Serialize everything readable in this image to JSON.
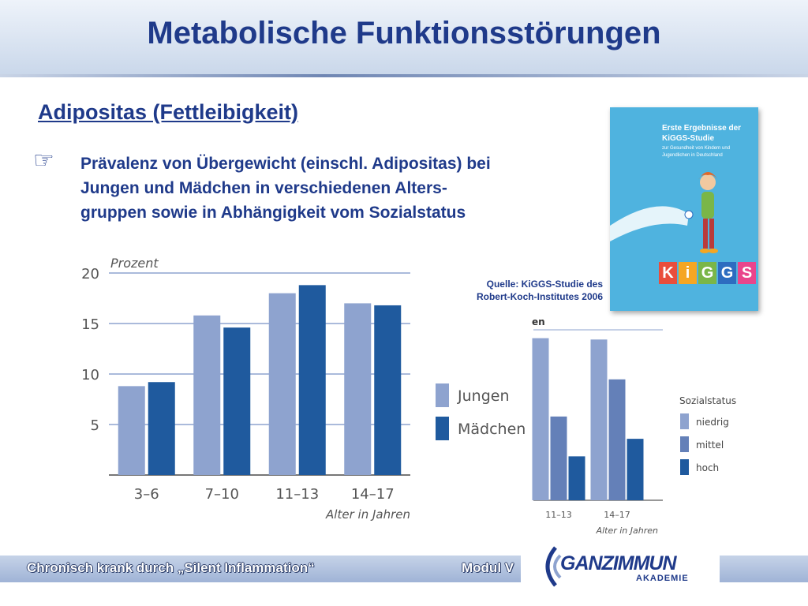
{
  "slide": {
    "title": "Metabolische Funktionsstörungen",
    "subtitle": "Adipositas (Fettleibigkeit)",
    "bullet_icon": "pointing-hand-icon",
    "bullet_lines": [
      "Prävalenz von Übergewicht (einschl. Adipositas) bei",
      "Jungen und Mädchen in verschiedenen Alters-",
      "gruppen sowie in Abhängigkeit vom Sozialstatus"
    ],
    "source_lines": [
      "Quelle: KiGGS-Studie des",
      "Robert-Koch-Institutes 2006"
    ]
  },
  "cover": {
    "title": "Erste Ergebnisse der KiGGS-Studie",
    "subtitle": "zur Gesundheit von Kindern und Jugendlichen in Deutschland",
    "logo_letters": [
      "K",
      "i",
      "G",
      "G",
      "S"
    ],
    "logo_colors": [
      "#e94e3c",
      "#f5a623",
      "#7ab648",
      "#2d6cc0",
      "#e9458c"
    ],
    "background": "#4fb3df"
  },
  "footer": {
    "left_text": "Chronisch krank durch „Silent Inflammation“",
    "modul": "Modul V",
    "logo_main": "GANZIMMUN",
    "logo_sub": "AKADEMIE"
  },
  "chart_data": [
    {
      "type": "bar",
      "ylabel": "Prozent",
      "xlabel": "Alter in Jahren",
      "categories": [
        "3–6",
        "7–10",
        "11–13",
        "14–17"
      ],
      "yticks": [
        5,
        10,
        15,
        20
      ],
      "ylim": [
        0,
        20
      ],
      "grid": true,
      "series": [
        {
          "name": "Jungen",
          "color": "#8ea3cf",
          "values": [
            8.8,
            15.8,
            18.0,
            17.0
          ]
        },
        {
          "name": "Mädchen",
          "color": "#1f5a9e",
          "values": [
            9.2,
            14.6,
            18.8,
            16.8
          ]
        }
      ],
      "legend_position": "right"
    },
    {
      "type": "bar",
      "title_fragment": "en",
      "xlabel": "Alter in Jahren",
      "categories": [
        "11–13",
        "14–17"
      ],
      "legend_title": "Sozialstatus",
      "series": [
        {
          "name": "niedrig",
          "color": "#8ea3cf",
          "values": [
            24.0,
            23.8
          ]
        },
        {
          "name": "mittel",
          "color": "#6480b8",
          "values": [
            12.4,
            17.9
          ]
        },
        {
          "name": "hoch",
          "color": "#1f5a9e",
          "values": [
            6.5,
            9.1
          ]
        }
      ],
      "ylim": [
        0,
        25
      ],
      "legend_position": "right"
    }
  ]
}
